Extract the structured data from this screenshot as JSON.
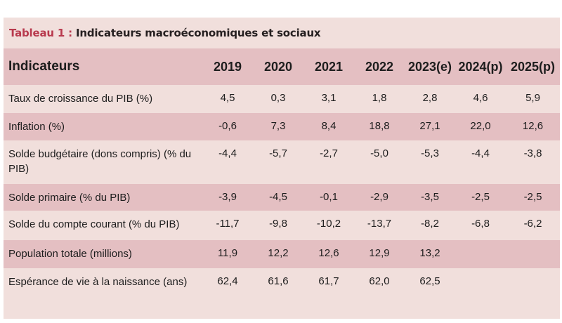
{
  "title": {
    "prefix": "Tableau 1 :",
    "text": "Indicateurs macroéconomiques et sociaux"
  },
  "table": {
    "headers": [
      "Indicateurs",
      "2019",
      "2020",
      "2021",
      "2022",
      "2023(e)",
      "2024(p)",
      "2025(p)"
    ],
    "rows": [
      {
        "label": "Taux de croissance du PIB (%)",
        "values": [
          "4,5",
          "0,3",
          "3,1",
          "1,8",
          "2,8",
          "4,6",
          "5,9"
        ]
      },
      {
        "label": "Inflation (%)",
        "values": [
          "-0,6",
          "7,3",
          "8,4",
          "18,8",
          "27,1",
          "22,0",
          "12,6"
        ]
      },
      {
        "label": "Solde budgétaire (dons compris) (% du PIB)",
        "values": [
          "-4,4",
          "-5,7",
          "-2,7",
          "-5,0",
          "-5,3",
          "-4,4",
          "-3,8"
        ]
      },
      {
        "label": "Solde primaire (% du PIB)",
        "values": [
          "-3,9",
          "-4,5",
          "-0,1",
          "-2,9",
          "-3,5",
          "-2,5",
          "-2,5"
        ]
      },
      {
        "label": "Solde du compte courant (% du PIB)",
        "values": [
          "-11,7",
          "-9,8",
          "-10,2",
          "-13,7",
          "-8,2",
          "-6,8",
          "-6,2"
        ]
      },
      {
        "label": "Population totale (millions)",
        "values": [
          "11,9",
          "12,2",
          "12,6",
          "12,9",
          "13,2",
          "",
          ""
        ]
      },
      {
        "label": "Espérance de vie à la naissance (ans)",
        "values": [
          "62,4",
          "61,6",
          "61,7",
          "62,0",
          "62,5",
          "",
          ""
        ]
      }
    ]
  }
}
